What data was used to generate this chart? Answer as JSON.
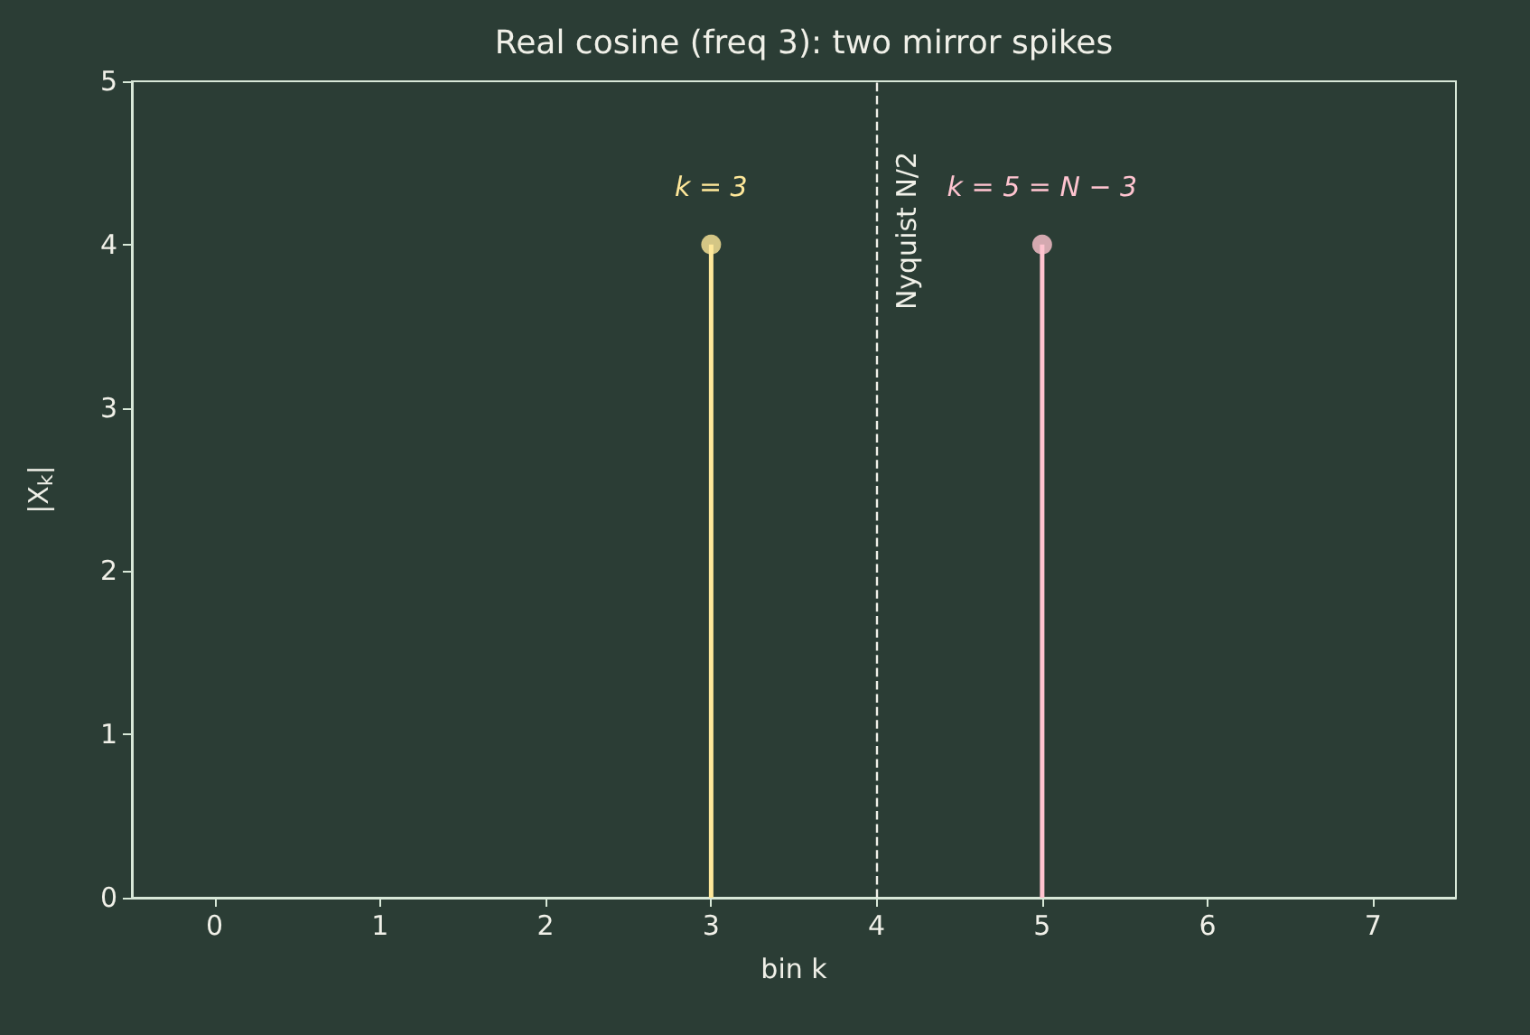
{
  "chart_data": {
    "type": "lollipop",
    "title": "Real cosine (freq 3): two mirror spikes",
    "xlabel": "bin k",
    "ylabel": "|X$_{k}$|",
    "x": [
      3,
      5
    ],
    "values": [
      4,
      4
    ],
    "colors": [
      "#ffe89a",
      "#ffc4d0"
    ],
    "xlim": [
      -0.5,
      7.5
    ],
    "xticks": [
      0,
      1,
      2,
      3,
      4,
      5,
      6,
      7
    ],
    "ylim": [
      0,
      5
    ],
    "yticks": [
      0,
      1,
      2,
      3,
      4,
      5
    ],
    "grid": false,
    "marker": "circle",
    "ref_lines": [
      {
        "axis": "x",
        "value": 4,
        "label": "Nyquist N/2",
        "line_style": "dashed",
        "color": "#f0f0e8"
      }
    ],
    "annotations": [
      {
        "text": "k = 3",
        "x": 3,
        "y": 4
      },
      {
        "text": "k = 5 = N − 3",
        "x": 5,
        "y": 4
      }
    ]
  }
}
